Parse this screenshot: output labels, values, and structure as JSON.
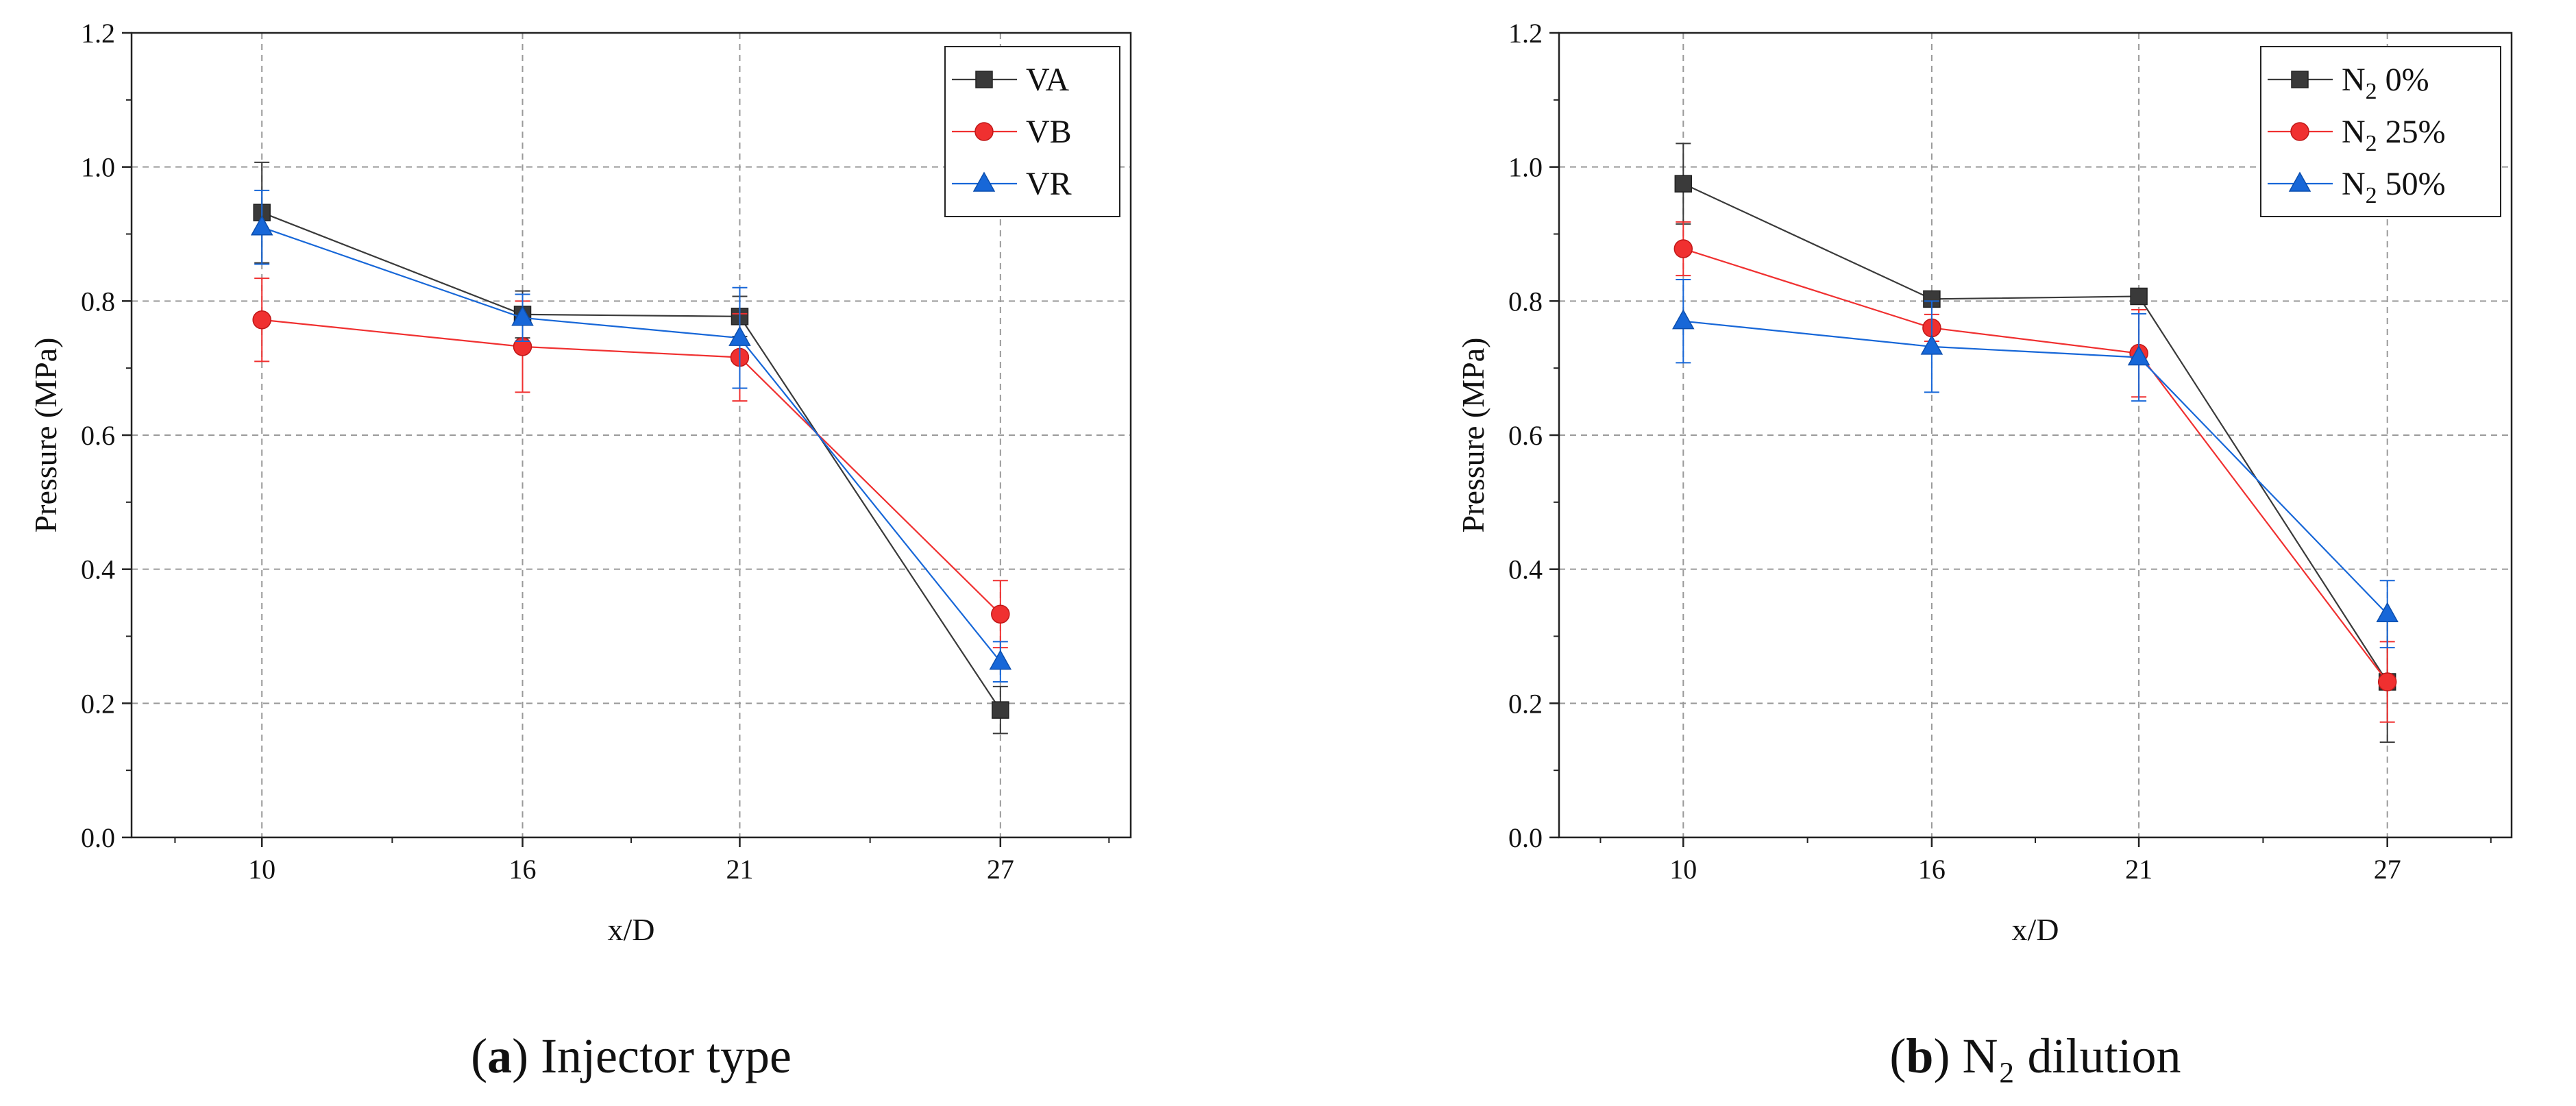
{
  "chart_data": [
    {
      "type": "line",
      "panel_label": "a",
      "caption": "Injector type",
      "xlabel": "x/D",
      "ylabel": "Pressure (MPa)",
      "categories": [
        "10",
        "16",
        "21",
        "27"
      ],
      "x": [
        10,
        16,
        21,
        27
      ],
      "xlim": [
        7,
        30
      ],
      "ylim": [
        0,
        1.2
      ],
      "yticks": [
        "0.0",
        "0.2",
        "0.4",
        "0.6",
        "0.8",
        "1.0",
        "1.2"
      ],
      "grid": true,
      "legend": "top-right",
      "series": [
        {
          "name": "VA",
          "color": "#3a3a3a",
          "marker": "square",
          "values": [
            0.932,
            0.78,
            0.777,
            0.19
          ],
          "err": [
            0.075,
            0.035,
            0.03,
            0.035
          ]
        },
        {
          "name": "VB",
          "color": "#f03030",
          "marker": "circle",
          "values": [
            0.772,
            0.732,
            0.716,
            0.333
          ],
          "err": [
            0.062,
            0.068,
            0.065,
            0.05
          ]
        },
        {
          "name": "VR",
          "color": "#1767d8",
          "marker": "triangle",
          "values": [
            0.91,
            0.775,
            0.745,
            0.262
          ],
          "err": [
            0.055,
            0.035,
            0.075,
            0.03
          ]
        }
      ]
    },
    {
      "type": "line",
      "panel_label": "b",
      "caption": "N₂ dilution",
      "xlabel": "x/D",
      "ylabel": "Pressure (MPa)",
      "categories": [
        "10",
        "16",
        "21",
        "27"
      ],
      "x": [
        10,
        16,
        21,
        27
      ],
      "xlim": [
        7,
        30
      ],
      "ylim": [
        0,
        1.2
      ],
      "yticks": [
        "0.0",
        "0.2",
        "0.4",
        "0.6",
        "0.8",
        "1.0",
        "1.2"
      ],
      "grid": true,
      "legend": "top-right",
      "series": [
        {
          "name": "N2 0%",
          "name_main": "N",
          "name_sub": "2",
          "name_rest": " 0%",
          "color": "#3a3a3a",
          "marker": "square",
          "values": [
            0.975,
            0.803,
            0.807,
            0.232
          ],
          "err": [
            0.06,
            0.01,
            0.01,
            0.09
          ]
        },
        {
          "name": "N2 25%",
          "name_main": "N",
          "name_sub": "2",
          "name_rest": " 25%",
          "color": "#f03030",
          "marker": "circle",
          "values": [
            0.878,
            0.76,
            0.722,
            0.232
          ],
          "err": [
            0.04,
            0.02,
            0.065,
            0.06
          ]
        },
        {
          "name": "N2 50%",
          "name_main": "N",
          "name_sub": "2",
          "name_rest": " 50%",
          "color": "#1767d8",
          "marker": "triangle",
          "values": [
            0.77,
            0.732,
            0.716,
            0.333
          ],
          "err": [
            0.062,
            0.068,
            0.065,
            0.05
          ]
        }
      ]
    }
  ]
}
